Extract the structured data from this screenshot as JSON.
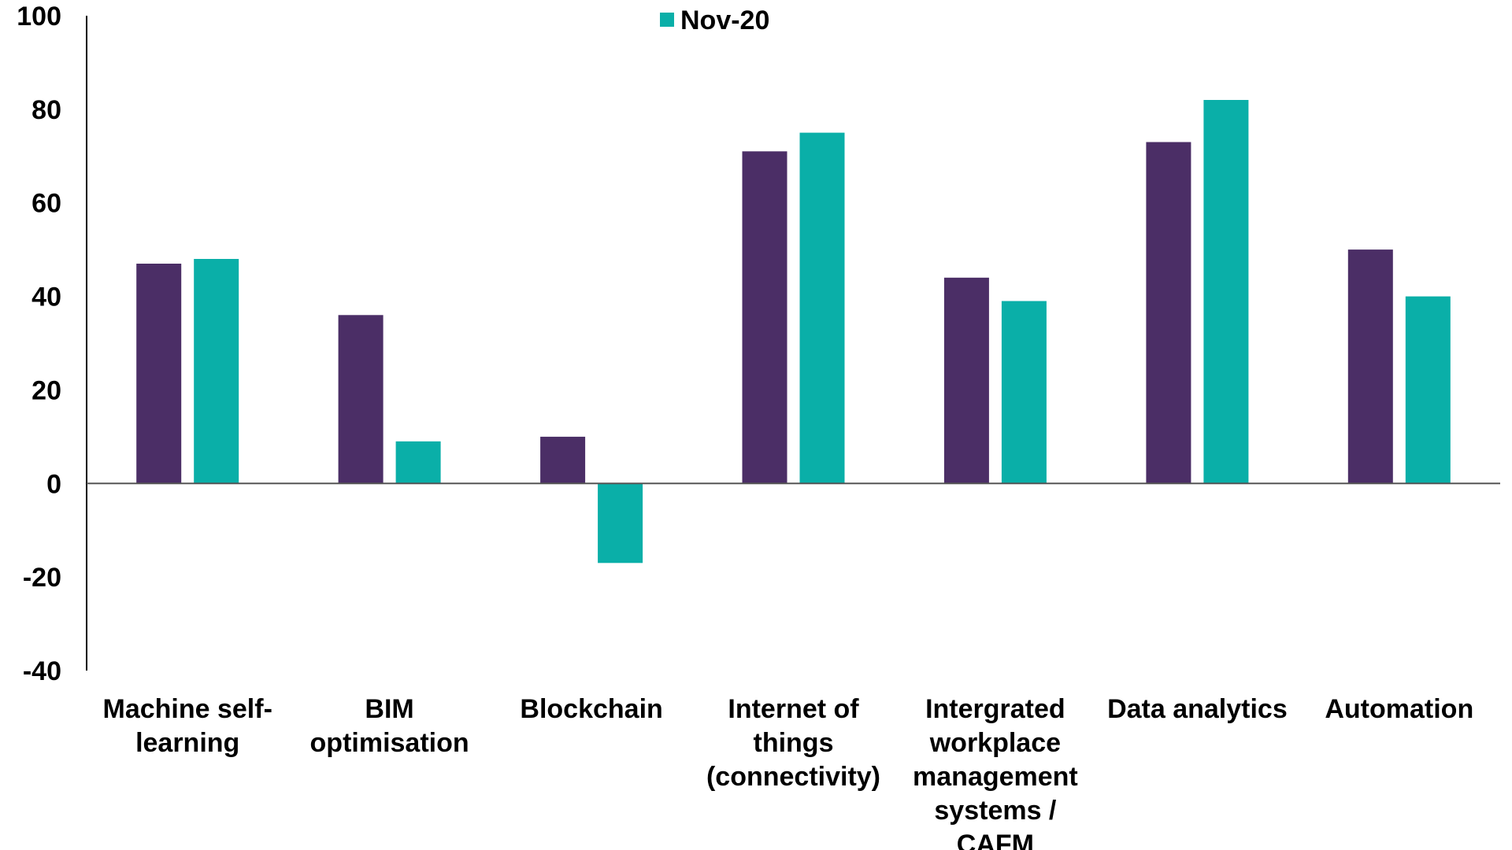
{
  "chart_data": {
    "type": "bar",
    "categories": [
      [
        "Machine self-",
        "learning"
      ],
      [
        "BIM",
        "optimisation"
      ],
      [
        "Blockchain"
      ],
      [
        "Internet of",
        "things",
        "(connectivity)"
      ],
      [
        "Intergrated",
        "workplace",
        "management",
        "systems /",
        "CAFM"
      ],
      [
        "Data analytics"
      ],
      [
        "Automation"
      ]
    ],
    "series": [
      {
        "values": [
          47,
          36,
          10,
          71,
          44,
          73,
          50
        ],
        "color": "#4b2e66"
      },
      {
        "name": "Nov-20",
        "values": [
          48,
          9,
          -17,
          75,
          39,
          82,
          40
        ],
        "color": "#0aafa8"
      }
    ],
    "ylim": [
      -40,
      100
    ],
    "yticks": [
      100,
      80,
      60,
      40,
      20,
      0,
      -20,
      -40
    ],
    "legend": {
      "position": "top-center",
      "entries": [
        "Nov-20"
      ]
    },
    "grid": false
  }
}
